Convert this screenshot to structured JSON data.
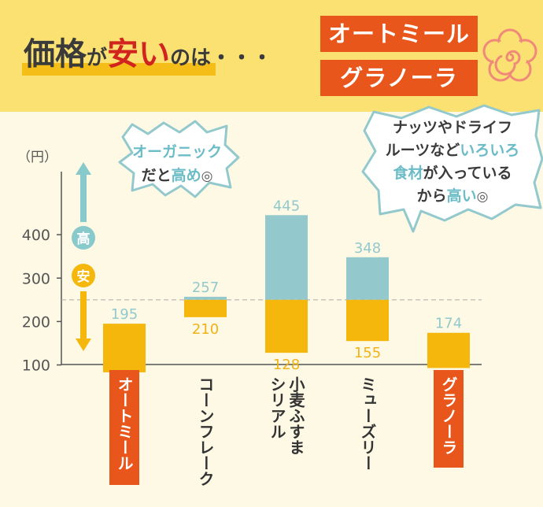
{
  "header": {
    "title_part1": "価格",
    "title_part2": "が",
    "title_part3": "安い",
    "title_part4": "のは・・・",
    "label1": "オートミール",
    "label2": "グラノーラ"
  },
  "bubbles": {
    "left": {
      "line1": "オーガニック",
      "line2_pre": "だと",
      "line2_accent": "高め"
    },
    "right": {
      "line1": "ナッツやドライフ",
      "line2_pre": "ルーツなど",
      "line2_accent": "いろいろ",
      "line3_accent": "食材",
      "line3_post": "が入っている",
      "line4_pre": "から",
      "line4_accent": "高い"
    }
  },
  "chart_data": {
    "type": "bar",
    "ylabel": "（円）",
    "ylim": [
      0,
      500
    ],
    "yticks": [
      100,
      200,
      300,
      400
    ],
    "reference_line": 250,
    "indicator_high": "高",
    "indicator_low": "安",
    "categories": [
      "オートミール",
      "コーンフレーク",
      "小麦ふすまシリアル",
      "ミューズリー",
      "グラノーラ"
    ],
    "category_lines": [
      [
        "オートミール"
      ],
      [
        "コーンフレーク"
      ],
      [
        "小麦ふすま",
        "シリアル"
      ],
      [
        "ミューズリー"
      ],
      [
        "グラノーラ"
      ]
    ],
    "highlight": [
      true,
      false,
      false,
      false,
      true
    ],
    "ranges": [
      {
        "low": 83,
        "high": 195
      },
      {
        "low": 210,
        "high": 257
      },
      {
        "low": 128,
        "high": 445
      },
      {
        "low": 155,
        "high": 348
      },
      {
        "low": 93,
        "high": 174
      }
    ],
    "colors": {
      "above": "#93c9cc",
      "below": "#f5b70c",
      "label": "#e8561b",
      "arrow": "#88c9cc",
      "text": "#f1b216",
      "axis": "#555555"
    }
  }
}
